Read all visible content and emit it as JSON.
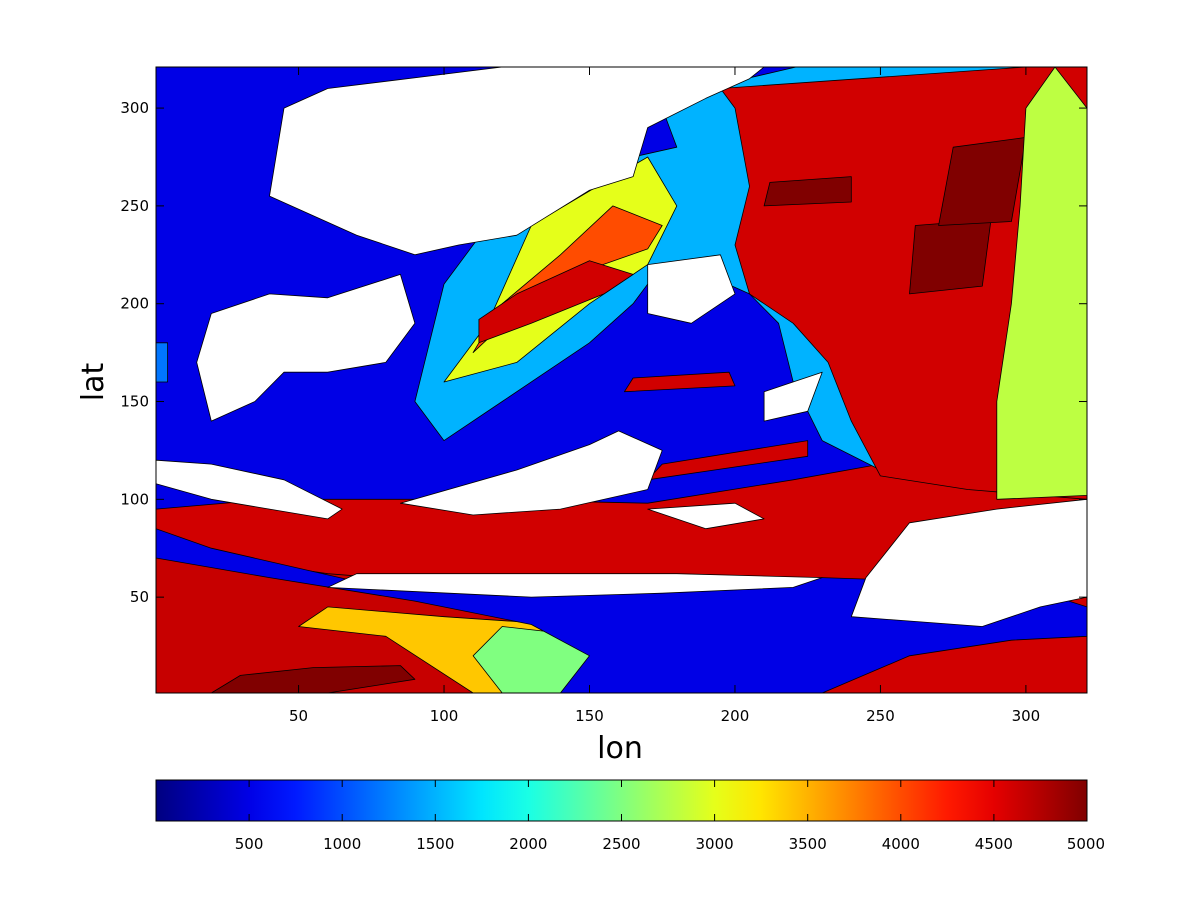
{
  "chart_data": {
    "type": "heatmap",
    "subtype": "filled-contour",
    "xlabel": "lon",
    "ylabel": "lat",
    "xlim": [
      1,
      321
    ],
    "ylim": [
      1,
      321
    ],
    "x_ticks": [
      50,
      100,
      150,
      200,
      250,
      300
    ],
    "y_ticks": [
      50,
      100,
      150,
      200,
      250,
      300
    ],
    "x_tick_labels": [
      "50",
      "100",
      "150",
      "200",
      "250",
      "300"
    ],
    "y_tick_labels": [
      "50",
      "100",
      "150",
      "200",
      "250",
      "300"
    ],
    "colorbar": {
      "orientation": "horizontal",
      "placement": "bottom",
      "range": [
        0,
        5000
      ],
      "colormap": "jet",
      "ticks": [
        500,
        1000,
        1500,
        2000,
        2500,
        3000,
        3500,
        4000,
        4500,
        5000
      ],
      "tick_labels": [
        "500",
        "1000",
        "1500",
        "2000",
        "2500",
        "3000",
        "3500",
        "4000",
        "4500",
        "5000"
      ]
    },
    "land_color": "#ffffff",
    "contour_line_color": "#000000",
    "regions": [
      {
        "kind": "sea",
        "level": 4600,
        "points": [
          [
            1,
            1
          ],
          [
            321,
            1
          ],
          [
            321,
            321
          ],
          [
            1,
            321
          ]
        ]
      },
      {
        "kind": "sea",
        "level": 4650,
        "points": [
          [
            1,
            1
          ],
          [
            160,
            1
          ],
          [
            160,
            50
          ],
          [
            120,
            55
          ],
          [
            60,
            62
          ],
          [
            1,
            75
          ]
        ]
      },
      {
        "kind": "sea",
        "level": 5000,
        "points": [
          [
            20,
            1
          ],
          [
            60,
            1
          ],
          [
            90,
            8
          ],
          [
            85,
            15
          ],
          [
            55,
            14
          ],
          [
            30,
            10
          ]
        ]
      },
      {
        "kind": "sea",
        "level": 5000,
        "points": [
          [
            130,
            22
          ],
          [
            150,
            22
          ],
          [
            150,
            28
          ],
          [
            130,
            28
          ]
        ]
      },
      {
        "kind": "sea",
        "level": 3400,
        "points": [
          [
            110,
            1
          ],
          [
            160,
            1
          ],
          [
            165,
            10
          ],
          [
            160,
            25
          ],
          [
            150,
            35
          ],
          [
            100,
            40
          ],
          [
            60,
            45
          ],
          [
            50,
            35
          ],
          [
            80,
            30
          ]
        ]
      },
      {
        "kind": "sea",
        "level": 2500,
        "points": [
          [
            120,
            1
          ],
          [
            140,
            1
          ],
          [
            160,
            12
          ],
          [
            150,
            30
          ],
          [
            120,
            35
          ],
          [
            110,
            20
          ]
        ]
      },
      {
        "kind": "sea",
        "level": 500,
        "points": [
          [
            140,
            1
          ],
          [
            230,
            1
          ],
          [
            260,
            20
          ],
          [
            295,
            28
          ],
          [
            321,
            30
          ],
          [
            321,
            45
          ],
          [
            300,
            55
          ],
          [
            270,
            58
          ],
          [
            230,
            60
          ],
          [
            160,
            60
          ],
          [
            120,
            55
          ],
          [
            70,
            58
          ],
          [
            20,
            75
          ],
          [
            1,
            85
          ],
          [
            1,
            70
          ],
          [
            40,
            60
          ],
          [
            90,
            48
          ],
          [
            130,
            36
          ],
          [
            150,
            20
          ]
        ]
      },
      {
        "kind": "sea",
        "level": 500,
        "points": [
          [
            1,
            95
          ],
          [
            40,
            100
          ],
          [
            110,
            100
          ],
          [
            170,
            98
          ],
          [
            220,
            110
          ],
          [
            250,
            118
          ],
          [
            280,
            125
          ],
          [
            321,
            135
          ],
          [
            321,
            321
          ],
          [
            1,
            321
          ]
        ]
      },
      {
        "kind": "sea",
        "level": 1500,
        "points": [
          [
            90,
            150
          ],
          [
            100,
            210
          ],
          [
            120,
            250
          ],
          [
            150,
            270
          ],
          [
            180,
            280
          ],
          [
            175,
            300
          ],
          [
            195,
            312
          ],
          [
            221,
            321
          ],
          [
            321,
            321
          ],
          [
            321,
            105
          ],
          [
            280,
            110
          ],
          [
            250,
            115
          ],
          [
            230,
            130
          ],
          [
            220,
            160
          ],
          [
            215,
            190
          ],
          [
            205,
            205
          ],
          [
            190,
            215
          ],
          [
            175,
            220
          ],
          [
            165,
            200
          ],
          [
            150,
            180
          ],
          [
            120,
            150
          ],
          [
            100,
            130
          ]
        ]
      },
      {
        "kind": "sea",
        "level": 4600,
        "points": [
          [
            195,
            310
          ],
          [
            300,
            321
          ],
          [
            321,
            321
          ],
          [
            321,
            100
          ],
          [
            280,
            105
          ],
          [
            250,
            112
          ],
          [
            240,
            140
          ],
          [
            232,
            170
          ],
          [
            220,
            190
          ],
          [
            205,
            205
          ],
          [
            200,
            230
          ],
          [
            205,
            260
          ],
          [
            200,
            300
          ]
        ]
      },
      {
        "kind": "sea",
        "level": 3000,
        "points": [
          [
            100,
            160
          ],
          [
            115,
            190
          ],
          [
            130,
            240
          ],
          [
            155,
            262
          ],
          [
            170,
            275
          ],
          [
            180,
            250
          ],
          [
            170,
            220
          ],
          [
            150,
            200
          ],
          [
            125,
            170
          ]
        ]
      },
      {
        "kind": "sea",
        "level": 4000,
        "points": [
          [
            110,
            175
          ],
          [
            128,
            200
          ],
          [
            145,
            215
          ],
          [
            170,
            228
          ],
          [
            175,
            240
          ],
          [
            158,
            250
          ],
          [
            140,
            225
          ],
          [
            120,
            200
          ]
        ]
      },
      {
        "kind": "sea",
        "level": 4600,
        "points": [
          [
            112,
            180
          ],
          [
            130,
            190
          ],
          [
            155,
            205
          ],
          [
            165,
            215
          ],
          [
            150,
            222
          ],
          [
            125,
            205
          ],
          [
            112,
            192
          ]
        ]
      },
      {
        "kind": "sea",
        "level": 5000,
        "points": [
          [
            260,
            205
          ],
          [
            285,
            209
          ],
          [
            288,
            243
          ],
          [
            262,
            240
          ]
        ]
      },
      {
        "kind": "sea",
        "level": 5000,
        "points": [
          [
            270,
            240
          ],
          [
            295,
            242
          ],
          [
            300,
            285
          ],
          [
            275,
            280
          ]
        ]
      },
      {
        "kind": "sea",
        "level": 5000,
        "points": [
          [
            210,
            250
          ],
          [
            240,
            252
          ],
          [
            240,
            265
          ],
          [
            212,
            262
          ]
        ]
      },
      {
        "kind": "sea",
        "level": 4600,
        "points": [
          [
            162,
            155
          ],
          [
            200,
            158
          ],
          [
            198,
            165
          ],
          [
            165,
            162
          ]
        ]
      },
      {
        "kind": "sea",
        "level": 4600,
        "points": [
          [
            170,
            110
          ],
          [
            225,
            122
          ],
          [
            225,
            130
          ],
          [
            175,
            118
          ]
        ]
      },
      {
        "kind": "sea",
        "level": 2800,
        "points": [
          [
            290,
            100
          ],
          [
            321,
            102
          ],
          [
            321,
            300
          ],
          [
            310,
            321
          ],
          [
            300,
            300
          ],
          [
            298,
            250
          ],
          [
            295,
            200
          ],
          [
            290,
            150
          ]
        ]
      },
      {
        "kind": "sea",
        "level": 1200,
        "points": [
          [
            1,
            180
          ],
          [
            5,
            180
          ],
          [
            5,
            160
          ],
          [
            1,
            160
          ]
        ]
      },
      {
        "kind": "land",
        "points": [
          [
            105,
            230
          ],
          [
            125,
            235
          ],
          [
            150,
            258
          ],
          [
            165,
            265
          ],
          [
            170,
            290
          ],
          [
            190,
            305
          ],
          [
            205,
            315
          ],
          [
            210,
            321
          ],
          [
            120,
            321
          ],
          [
            60,
            310
          ],
          [
            45,
            300
          ],
          [
            40,
            255
          ],
          [
            70,
            235
          ],
          [
            90,
            225
          ]
        ]
      },
      {
        "kind": "land",
        "points": [
          [
            20,
            195
          ],
          [
            40,
            205
          ],
          [
            60,
            203
          ],
          [
            85,
            215
          ],
          [
            90,
            190
          ],
          [
            80,
            170
          ],
          [
            60,
            165
          ],
          [
            45,
            165
          ],
          [
            35,
            150
          ],
          [
            20,
            140
          ],
          [
            15,
            170
          ]
        ]
      },
      {
        "kind": "land",
        "points": [
          [
            1,
            120
          ],
          [
            20,
            118
          ],
          [
            45,
            110
          ],
          [
            65,
            95
          ],
          [
            60,
            90
          ],
          [
            40,
            95
          ],
          [
            20,
            100
          ],
          [
            1,
            108
          ]
        ]
      },
      {
        "kind": "land",
        "points": [
          [
            85,
            98
          ],
          [
            125,
            115
          ],
          [
            150,
            128
          ],
          [
            160,
            135
          ],
          [
            175,
            125
          ],
          [
            170,
            105
          ],
          [
            140,
            95
          ],
          [
            110,
            92
          ]
        ]
      },
      {
        "kind": "land",
        "points": [
          [
            170,
            220
          ],
          [
            195,
            225
          ],
          [
            200,
            205
          ],
          [
            185,
            190
          ],
          [
            170,
            195
          ]
        ]
      },
      {
        "kind": "land",
        "points": [
          [
            60,
            55
          ],
          [
            130,
            50
          ],
          [
            175,
            52
          ],
          [
            220,
            55
          ],
          [
            230,
            60
          ],
          [
            180,
            62
          ],
          [
            120,
            62
          ],
          [
            70,
            62
          ]
        ]
      },
      {
        "kind": "land",
        "points": [
          [
            240,
            40
          ],
          [
            285,
            35
          ],
          [
            305,
            45
          ],
          [
            321,
            50
          ],
          [
            321,
            100
          ],
          [
            290,
            95
          ],
          [
            260,
            88
          ],
          [
            245,
            60
          ]
        ]
      },
      {
        "kind": "land",
        "points": [
          [
            210,
            155
          ],
          [
            230,
            165
          ],
          [
            225,
            145
          ],
          [
            210,
            140
          ]
        ]
      },
      {
        "kind": "land",
        "points": [
          [
            170,
            95
          ],
          [
            200,
            98
          ],
          [
            210,
            90
          ],
          [
            190,
            85
          ]
        ]
      }
    ]
  }
}
